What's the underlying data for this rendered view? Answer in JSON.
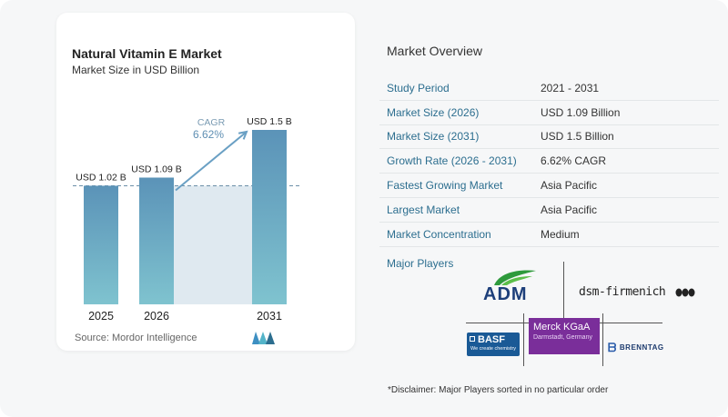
{
  "chart_data": {
    "type": "bar",
    "title": "Natural Vitamin E Market",
    "subtitle": "Market Size in USD Billion",
    "categories": [
      "2025",
      "2026",
      "2031"
    ],
    "values": [
      1.02,
      1.09,
      1.5
    ],
    "data_labels": [
      "USD 1.02 B",
      "USD 1.09 B",
      "USD 1.5 B"
    ],
    "annotation": {
      "label": "CAGR",
      "value": "6.62%"
    },
    "grid": false,
    "colors": {
      "bar_top": "#5b93b8",
      "bar_bottom": "#7fc3cf",
      "shade": "#dfe9f0",
      "arrow": "#6aa0c4"
    }
  },
  "source": "Source:  Mordor Intelligence",
  "overview": {
    "heading": "Market Overview",
    "rows": [
      {
        "label": "Study Period",
        "value": "2021 - 2031"
      },
      {
        "label": "Market Size (2026)",
        "value": "USD 1.09 Billion"
      },
      {
        "label": "Market Size (2031)",
        "value": "USD 1.5 Billion"
      },
      {
        "label": "Growth Rate (2026 - 2031)",
        "value": "6.62% CAGR"
      },
      {
        "label": "Fastest Growing Market",
        "value": "Asia Pacific"
      },
      {
        "label": "Largest Market",
        "value": "Asia Pacific"
      },
      {
        "label": "Market Concentration",
        "value": "Medium"
      }
    ]
  },
  "players": {
    "heading": "Major Players",
    "adm": "ADM",
    "dsm": "dsm-firmenich",
    "basf_name": "BASF",
    "basf_tag": "We create chemistry",
    "merck_name": "Merck KGaA",
    "merck_sub": "Darmstadt, Germany",
    "brenntag": "BRENNTAG"
  },
  "disclaimer": "*Disclaimer: Major Players sorted in no particular order"
}
